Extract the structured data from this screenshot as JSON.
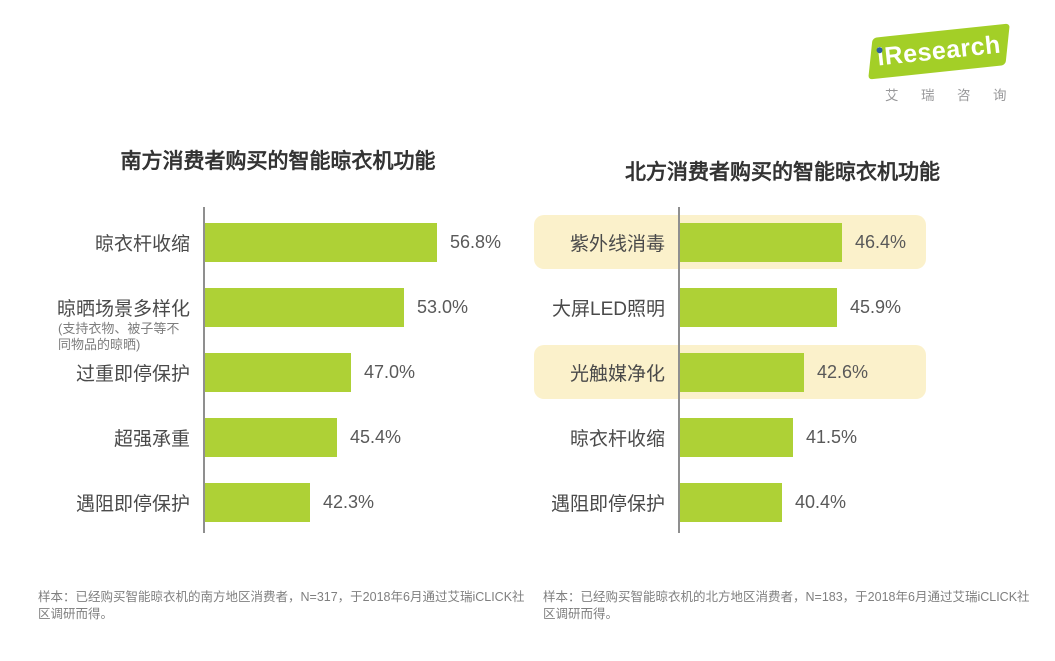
{
  "logo": {
    "brand_i": "i",
    "brand_rest": "Research",
    "brand_full": "iResearch",
    "subtitle": "艾瑞咨询",
    "banner_color": "#a3cf27",
    "dot_color": "#2b5f9e",
    "text_color": "#ffffff",
    "subtitle_color": "#98989a"
  },
  "chart_data": [
    {
      "type": "bar",
      "orientation": "horizontal",
      "title": "南方消费者购买的智能晾衣机功能",
      "categories": [
        "晾衣杆收缩",
        "晾晒场景多样化",
        "过重即停保护",
        "超强承重",
        "遇阻即停保护"
      ],
      "category_note": {
        "index": 1,
        "lines": [
          "(支持衣物、被子等不",
          "同物品的晾晒)"
        ]
      },
      "values": [
        56.8,
        53.0,
        47.0,
        45.4,
        42.3
      ],
      "value_labels": [
        "56.8%",
        "53.0%",
        "47.0%",
        "45.4%",
        "42.3%"
      ],
      "highlighted_rows": [],
      "xlim": [
        30,
        60
      ],
      "grid": false,
      "legend": false,
      "bar_color": "#aed136",
      "axis_color": "#8f8f8f",
      "footnote": "样本：已经购买智能晾衣机的南方地区消费者，N=317，于2018年6月通过艾瑞iCLICK社区调研而得。"
    },
    {
      "type": "bar",
      "orientation": "horizontal",
      "title": "北方消费者购买的智能晾衣机功能",
      "categories": [
        "紫外线消毒",
        "大屏LED照明",
        "光触媒净化",
        "晾衣杆收缩",
        "遇阻即停保护"
      ],
      "values": [
        46.4,
        45.9,
        42.6,
        41.5,
        40.4
      ],
      "value_labels": [
        "46.4%",
        "45.9%",
        "42.6%",
        "41.5%",
        "40.4%"
      ],
      "highlighted_rows": [
        0,
        2
      ],
      "highlight_color": "#fbf1cb",
      "xlim": [
        30,
        54
      ],
      "grid": false,
      "legend": false,
      "bar_color": "#aed136",
      "axis_color": "#8f8f8f",
      "footnote": "样本：已经购买智能晾衣机的北方地区消费者，N=183，于2018年6月通过艾瑞iCLICK社区调研而得。"
    }
  ]
}
